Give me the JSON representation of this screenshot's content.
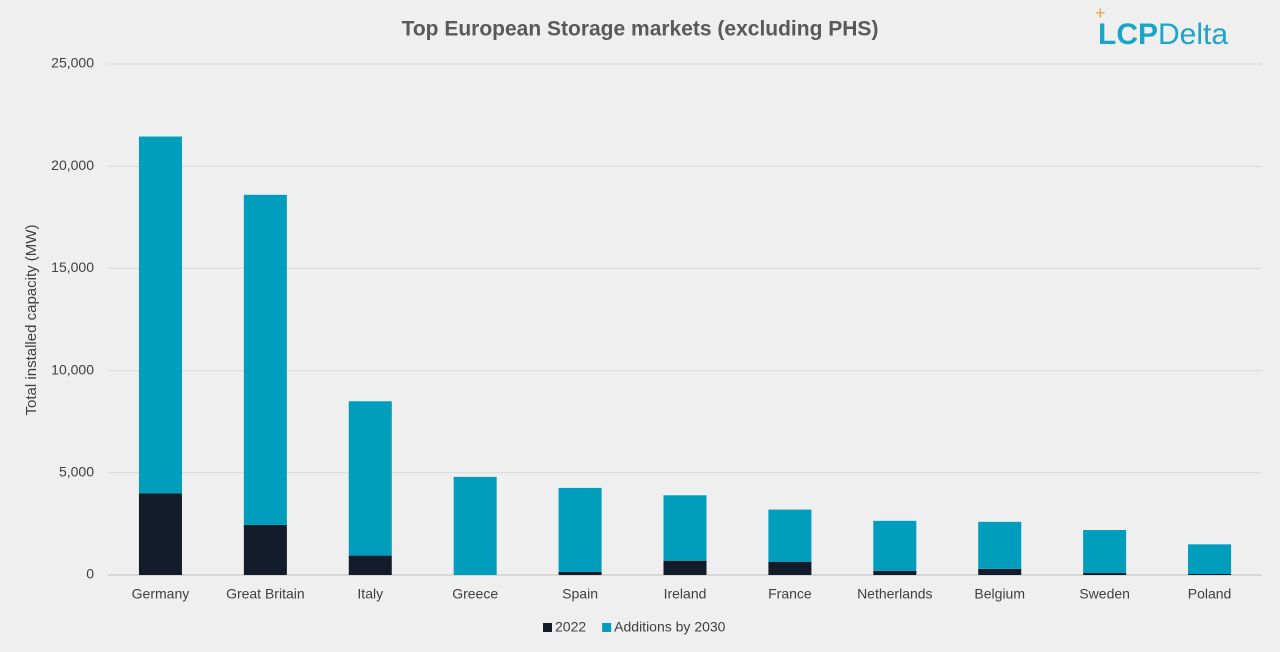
{
  "chart_data": {
    "type": "stacked-bar",
    "title": "Top European Storage markets (excluding PHS)",
    "y_label": "Total installed capacity (MW)",
    "categories": [
      "Germany",
      "Great Britain",
      "Italy",
      "Greece",
      "Spain",
      "Ireland",
      "France",
      "Netherlands",
      "Belgium",
      "Sweden",
      "Poland"
    ],
    "series": [
      {
        "name": "2022",
        "color": "#131c2b",
        "values": [
          4000,
          2450,
          950,
          0,
          150,
          700,
          650,
          200,
          300,
          100,
          50
        ]
      },
      {
        "name": "Additions by 2030",
        "color": "#009dbd",
        "values": [
          17450,
          16150,
          7550,
          4800,
          4110,
          3200,
          2550,
          2450,
          2300,
          2100,
          1450
        ]
      }
    ],
    "ylim": [
      0,
      25000
    ],
    "yticks": [
      0,
      {
        "value": 5000,
        "label": "5,000"
      },
      {
        "value": 10000,
        "label": "10,000"
      },
      {
        "value": 15000,
        "label": "15,000"
      },
      {
        "value": 20000,
        "label": "20,000"
      },
      {
        "value": 25000,
        "label": "25,000"
      }
    ],
    "grid": true,
    "legend": "bottom"
  },
  "logo": {
    "plus": "+",
    "bold": "LCP",
    "light": "Delta"
  }
}
